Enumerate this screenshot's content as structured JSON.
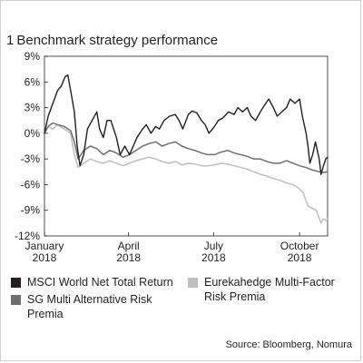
{
  "figure": {
    "number": "1",
    "title": "Benchmark strategy performance",
    "source": "Source: Bloomberg, Nomura"
  },
  "chart_data": {
    "type": "line",
    "title": "Benchmark strategy performance",
    "xlabel": "",
    "ylabel": "",
    "y_unit": "%",
    "ylim": [
      -12,
      9
    ],
    "yticks": [
      9,
      6,
      3,
      0,
      -3,
      -6,
      -9,
      -12
    ],
    "ytick_labels": [
      "9%",
      "6%",
      "3%",
      "0%",
      "-3%",
      "-6%",
      "-9%",
      "-12%"
    ],
    "xlim": [
      "2018-01-01",
      "2018-10-31"
    ],
    "xticks": [
      {
        "date": "2018-01-01",
        "line1": "January",
        "line2": "2018"
      },
      {
        "date": "2018-04-01",
        "line1": "April",
        "line2": "2018"
      },
      {
        "date": "2018-07-01",
        "line1": "July",
        "line2": "2018"
      },
      {
        "date": "2018-10-01",
        "line1": "October",
        "line2": "2018"
      }
    ],
    "grid": false,
    "legend_position": "bottom",
    "series": [
      {
        "name": "MSCI World Net Total Return",
        "color": "#231f20",
        "points": [
          [
            "2018-01-01",
            0.0
          ],
          [
            "2018-01-05",
            2.0
          ],
          [
            "2018-01-10",
            3.5
          ],
          [
            "2018-01-15",
            5.0
          ],
          [
            "2018-01-19",
            5.5
          ],
          [
            "2018-01-23",
            6.6
          ],
          [
            "2018-01-26",
            6.8
          ],
          [
            "2018-01-29",
            5.0
          ],
          [
            "2018-02-02",
            2.5
          ],
          [
            "2018-02-05",
            -1.5
          ],
          [
            "2018-02-08",
            -3.8
          ],
          [
            "2018-02-12",
            -2.5
          ],
          [
            "2018-02-16",
            0.5
          ],
          [
            "2018-02-21",
            1.5
          ],
          [
            "2018-02-26",
            2.5
          ],
          [
            "2018-03-01",
            0.5
          ],
          [
            "2018-03-05",
            -0.5
          ],
          [
            "2018-03-09",
            1.5
          ],
          [
            "2018-03-13",
            1.5
          ],
          [
            "2018-03-19",
            -0.5
          ],
          [
            "2018-03-23",
            -2.5
          ],
          [
            "2018-03-28",
            -1.5
          ],
          [
            "2018-04-02",
            -2.5
          ],
          [
            "2018-04-06",
            -1.5
          ],
          [
            "2018-04-10",
            -0.5
          ],
          [
            "2018-04-16",
            0.5
          ],
          [
            "2018-04-20",
            1.0
          ],
          [
            "2018-04-25",
            0.0
          ],
          [
            "2018-04-30",
            0.8
          ],
          [
            "2018-05-04",
            0.5
          ],
          [
            "2018-05-09",
            1.5
          ],
          [
            "2018-05-15",
            2.0
          ],
          [
            "2018-05-21",
            2.2
          ],
          [
            "2018-05-25",
            1.5
          ],
          [
            "2018-05-29",
            0.5
          ],
          [
            "2018-06-04",
            2.2
          ],
          [
            "2018-06-08",
            2.6
          ],
          [
            "2018-06-13",
            2.4
          ],
          [
            "2018-06-18",
            1.5
          ],
          [
            "2018-06-22",
            1.0
          ],
          [
            "2018-06-26",
            0.0
          ],
          [
            "2018-07-02",
            0.8
          ],
          [
            "2018-07-06",
            1.5
          ],
          [
            "2018-07-11",
            1.8
          ],
          [
            "2018-07-17",
            2.5
          ],
          [
            "2018-07-23",
            2.2
          ],
          [
            "2018-07-27",
            3.0
          ],
          [
            "2018-08-01",
            2.5
          ],
          [
            "2018-08-06",
            3.0
          ],
          [
            "2018-08-10",
            2.0
          ],
          [
            "2018-08-15",
            1.5
          ],
          [
            "2018-08-20",
            2.5
          ],
          [
            "2018-08-24",
            3.2
          ],
          [
            "2018-08-29",
            4.0
          ],
          [
            "2018-09-03",
            3.0
          ],
          [
            "2018-09-07",
            2.0
          ],
          [
            "2018-09-12",
            2.5
          ],
          [
            "2018-09-17",
            3.0
          ],
          [
            "2018-09-21",
            4.0
          ],
          [
            "2018-09-26",
            3.5
          ],
          [
            "2018-10-01",
            4.0
          ],
          [
            "2018-10-04",
            2.0
          ],
          [
            "2018-10-08",
            0.0
          ],
          [
            "2018-10-10",
            -1.5
          ],
          [
            "2018-10-12",
            -3.5
          ],
          [
            "2018-10-15",
            -2.5
          ],
          [
            "2018-10-18",
            -1.0
          ],
          [
            "2018-10-22",
            -3.0
          ],
          [
            "2018-10-24",
            -4.8
          ],
          [
            "2018-10-26",
            -4.0
          ],
          [
            "2018-10-29",
            -3.0
          ],
          [
            "2018-10-31",
            -2.8
          ]
        ]
      },
      {
        "name": "SG Multi Alternative Risk Premia",
        "color": "#6d6e70",
        "points": [
          [
            "2018-01-01",
            0.0
          ],
          [
            "2018-01-05",
            0.8
          ],
          [
            "2018-01-10",
            1.2
          ],
          [
            "2018-01-15",
            1.0
          ],
          [
            "2018-01-22",
            0.8
          ],
          [
            "2018-01-29",
            0.3
          ],
          [
            "2018-02-02",
            -1.0
          ],
          [
            "2018-02-06",
            -3.0
          ],
          [
            "2018-02-12",
            -2.0
          ],
          [
            "2018-02-19",
            -1.5
          ],
          [
            "2018-02-26",
            -1.8
          ],
          [
            "2018-03-05",
            -2.5
          ],
          [
            "2018-03-12",
            -2.0
          ],
          [
            "2018-03-19",
            -2.3
          ],
          [
            "2018-03-26",
            -2.8
          ],
          [
            "2018-04-02",
            -2.5
          ],
          [
            "2018-04-09",
            -2.0
          ],
          [
            "2018-04-16",
            -1.5
          ],
          [
            "2018-04-23",
            -1.2
          ],
          [
            "2018-04-30",
            -1.0
          ],
          [
            "2018-05-07",
            -1.5
          ],
          [
            "2018-05-14",
            -1.2
          ],
          [
            "2018-05-21",
            -1.0
          ],
          [
            "2018-05-28",
            -1.5
          ],
          [
            "2018-06-04",
            -1.8
          ],
          [
            "2018-06-11",
            -2.0
          ],
          [
            "2018-06-18",
            -2.3
          ],
          [
            "2018-06-25",
            -2.5
          ],
          [
            "2018-07-02",
            -2.5
          ],
          [
            "2018-07-09",
            -2.2
          ],
          [
            "2018-07-16",
            -2.0
          ],
          [
            "2018-07-23",
            -2.3
          ],
          [
            "2018-07-30",
            -2.5
          ],
          [
            "2018-08-06",
            -2.7
          ],
          [
            "2018-08-13",
            -3.0
          ],
          [
            "2018-08-20",
            -3.0
          ],
          [
            "2018-08-27",
            -3.3
          ],
          [
            "2018-09-03",
            -3.5
          ],
          [
            "2018-09-10",
            -3.5
          ],
          [
            "2018-09-17",
            -3.2
          ],
          [
            "2018-09-24",
            -3.5
          ],
          [
            "2018-10-01",
            -3.8
          ],
          [
            "2018-10-08",
            -4.0
          ],
          [
            "2018-10-15",
            -4.3
          ],
          [
            "2018-10-22",
            -4.5
          ],
          [
            "2018-10-26",
            -4.6
          ],
          [
            "2018-10-31",
            -4.5
          ]
        ]
      },
      {
        "name": "Eurekahedge Multi-Factor Risk Premia",
        "color": "#bcbec0",
        "points": [
          [
            "2018-01-01",
            0.0
          ],
          [
            "2018-01-05",
            0.8
          ],
          [
            "2018-01-10",
            0.5
          ],
          [
            "2018-01-15",
            1.0
          ],
          [
            "2018-01-22",
            0.5
          ],
          [
            "2018-01-29",
            0.0
          ],
          [
            "2018-02-02",
            -2.5
          ],
          [
            "2018-02-06",
            -4.0
          ],
          [
            "2018-02-12",
            -3.5
          ],
          [
            "2018-02-19",
            -3.0
          ],
          [
            "2018-02-26",
            -3.3
          ],
          [
            "2018-03-05",
            -3.5
          ],
          [
            "2018-03-12",
            -3.2
          ],
          [
            "2018-03-19",
            -3.5
          ],
          [
            "2018-03-26",
            -3.8
          ],
          [
            "2018-04-02",
            -3.5
          ],
          [
            "2018-04-09",
            -3.2
          ],
          [
            "2018-04-16",
            -3.0
          ],
          [
            "2018-04-23",
            -2.8
          ],
          [
            "2018-04-30",
            -3.0
          ],
          [
            "2018-05-07",
            -3.3
          ],
          [
            "2018-05-14",
            -3.5
          ],
          [
            "2018-05-21",
            -3.3
          ],
          [
            "2018-05-28",
            -3.7
          ],
          [
            "2018-06-04",
            -3.5
          ],
          [
            "2018-06-11",
            -3.6
          ],
          [
            "2018-06-18",
            -3.8
          ],
          [
            "2018-06-25",
            -3.8
          ],
          [
            "2018-07-02",
            -3.7
          ],
          [
            "2018-07-09",
            -3.5
          ],
          [
            "2018-07-16",
            -3.6
          ],
          [
            "2018-07-23",
            -3.8
          ],
          [
            "2018-07-30",
            -4.0
          ],
          [
            "2018-08-06",
            -4.2
          ],
          [
            "2018-08-13",
            -4.5
          ],
          [
            "2018-08-20",
            -4.8
          ],
          [
            "2018-08-27",
            -5.0
          ],
          [
            "2018-09-03",
            -5.3
          ],
          [
            "2018-09-10",
            -5.5
          ],
          [
            "2018-09-17",
            -5.8
          ],
          [
            "2018-09-24",
            -6.0
          ],
          [
            "2018-10-01",
            -6.5
          ],
          [
            "2018-10-05",
            -7.0
          ],
          [
            "2018-10-10",
            -8.5
          ],
          [
            "2018-10-15",
            -8.8
          ],
          [
            "2018-10-19",
            -9.0
          ],
          [
            "2018-10-24",
            -10.5
          ],
          [
            "2018-10-26",
            -10.0
          ],
          [
            "2018-10-29",
            -10.2
          ],
          [
            "2018-10-31",
            -10.0
          ]
        ]
      }
    ]
  },
  "legend": [
    {
      "label": "MSCI World Net Total Return",
      "color": "#231f20"
    },
    {
      "label": "Eurekahedge Multi-Factor Risk Premia",
      "color": "#bcbec0"
    },
    {
      "label": "SG Multi Alternative Risk Premia",
      "color": "#6d6e70"
    }
  ]
}
